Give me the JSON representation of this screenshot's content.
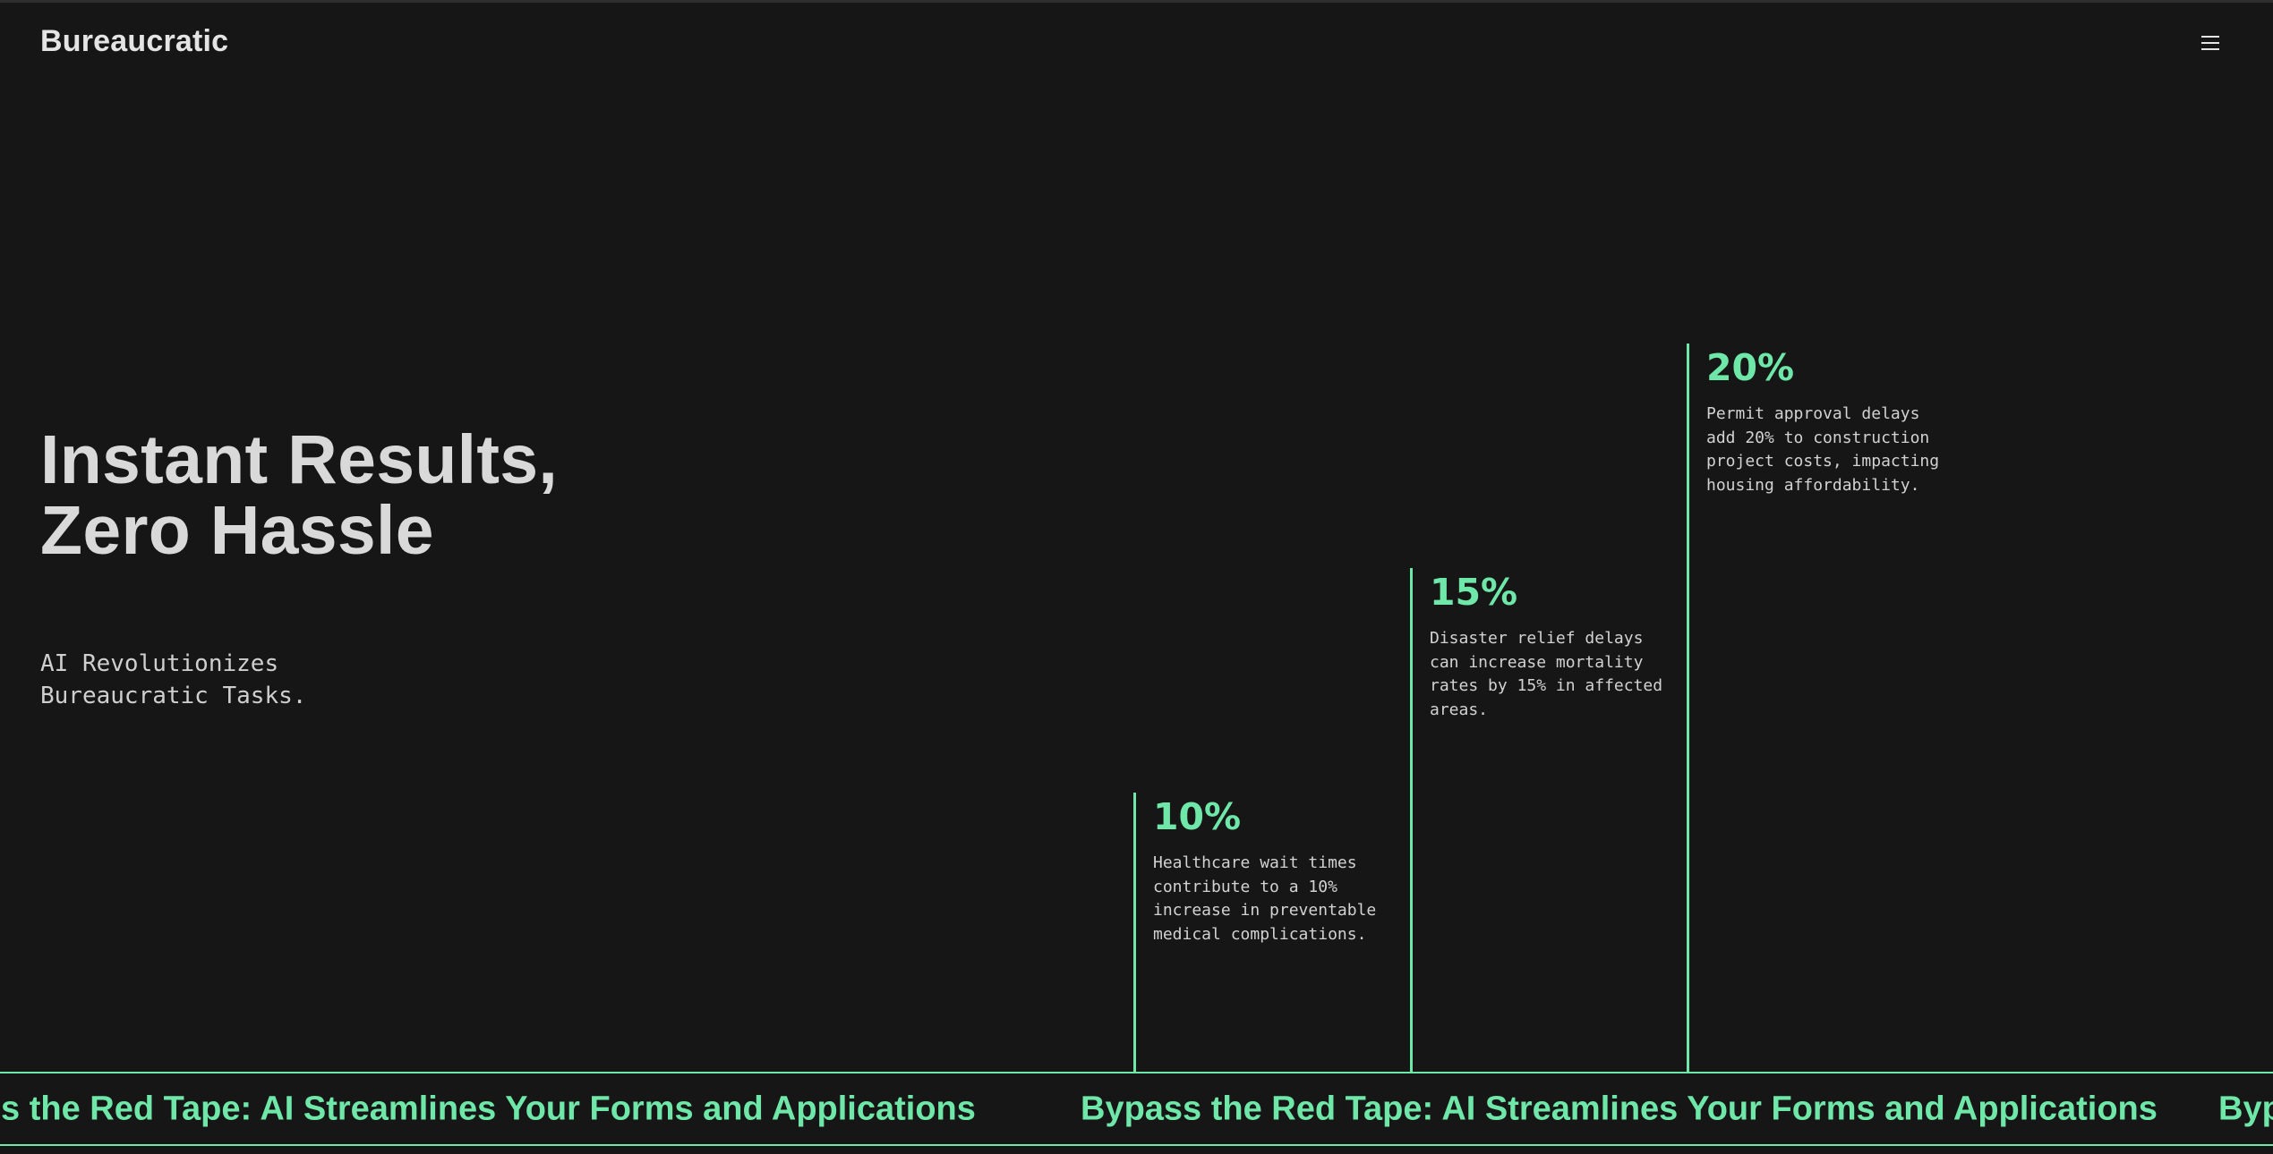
{
  "header": {
    "brand": "Bureaucratic",
    "menu_icon": "hamburger-menu-icon"
  },
  "hero": {
    "title_line1": "Instant Results,",
    "title_line2": "Zero Hassle",
    "subtitle": "AI Revolutionizes Bureaucratic Tasks."
  },
  "stats": [
    {
      "value": "10%",
      "description": "Healthcare wait times contribute to a 10% increase in preventable medical complications."
    },
    {
      "value": "15%",
      "description": "Disaster relief delays can increase mortality rates by 15% in affected areas."
    },
    {
      "value": "20%",
      "description": "Permit approval delays add 20% to construction project costs, impacting housing affordability."
    }
  ],
  "ticker": {
    "text": "Bypass the Red Tape: AI Streamlines Your Forms and Applications",
    "text_partial_start": "ass the Red Tape: AI Streamlines Your Forms and Applications",
    "text_partial_end": "Byp"
  },
  "colors": {
    "background": "#161616",
    "accent": "#6ee7a8",
    "text": "#dcdcdc"
  }
}
